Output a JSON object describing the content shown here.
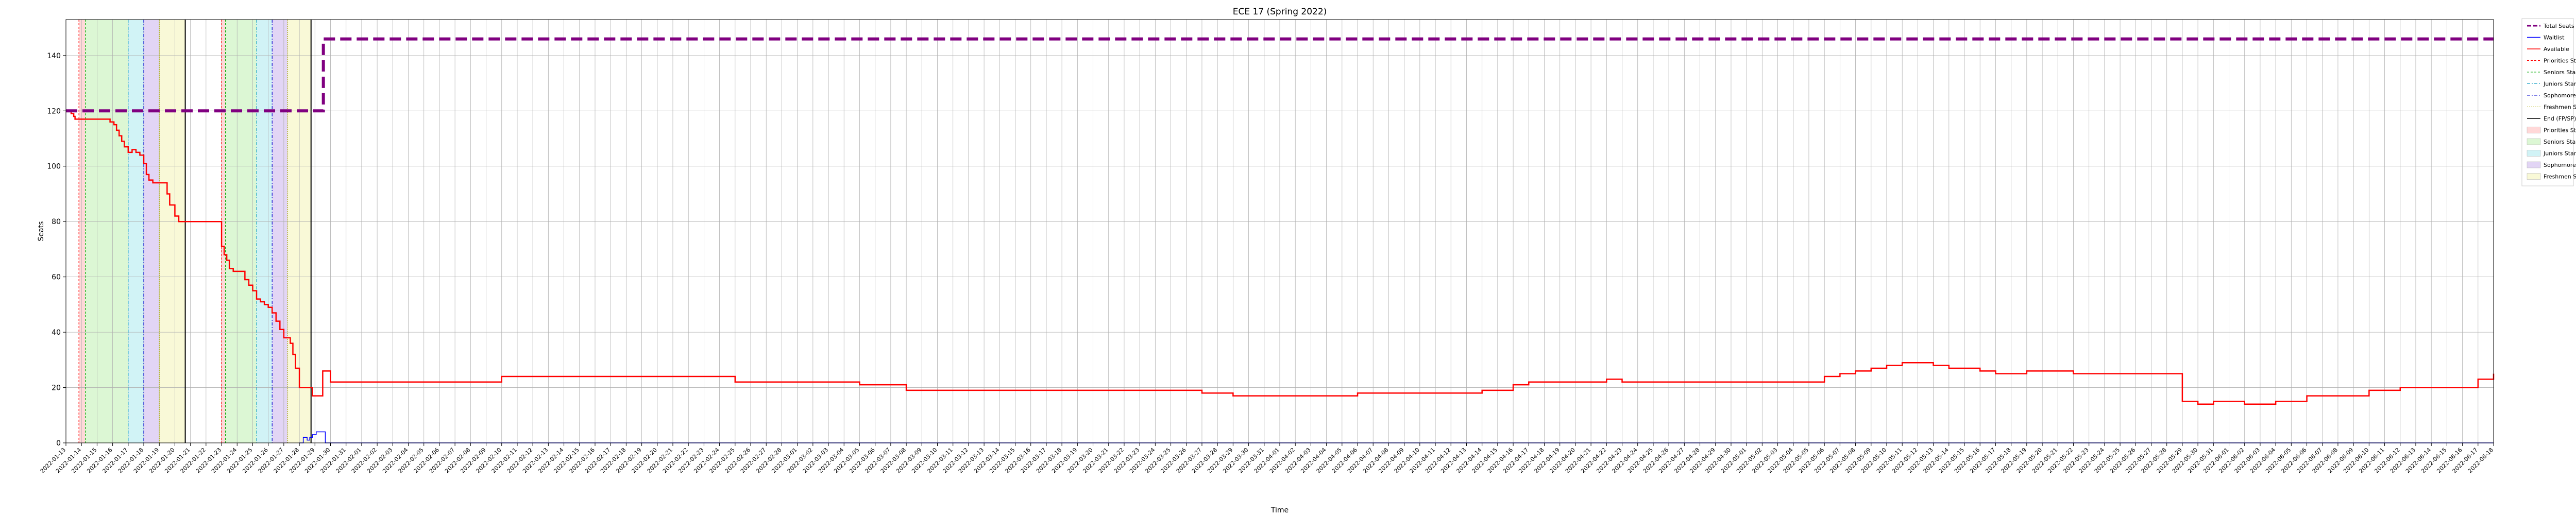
{
  "chart_data": {
    "type": "line",
    "title": "ECE 17 (Spring 2022)",
    "xlabel": "Time",
    "ylabel": "Seats",
    "ylim": [
      0,
      153
    ],
    "y_ticks": [
      0,
      20,
      40,
      60,
      80,
      100,
      120,
      140
    ],
    "grid": true,
    "legend_placement": "outside-right",
    "x_range": [
      "2022-01-13",
      "2022-06-18"
    ],
    "x_tick_interval_days": 1,
    "colors": {
      "total": "#800080",
      "waitlist": "#0000ff",
      "available": "#ff0000",
      "priorities": "#ff0000",
      "seniors": "#00aa00",
      "juniors": "#1ba3c6",
      "sophomores": "#0000cc",
      "freshmen": "#aaaa00",
      "end": "#000000",
      "priorities_fill": "#ffd8d8",
      "seniors_fill": "#dcf7d4",
      "juniors_fill": "#d1f3f6",
      "sophomores_fill": "#e2d5f5",
      "freshmen_fill": "#f9f9d7"
    },
    "legend": [
      {
        "label": "Total Seats",
        "kind": "line",
        "color": "#800080",
        "dash": "8,4",
        "width": 3
      },
      {
        "label": "Waitlist",
        "kind": "line",
        "color": "#0000ff",
        "dash": "",
        "width": 1.5
      },
      {
        "label": "Available",
        "kind": "line",
        "color": "#ff0000",
        "dash": "",
        "width": 1.5
      },
      {
        "label": "Priorities Start",
        "kind": "line",
        "color": "#ff0000",
        "dash": "4,3",
        "width": 1
      },
      {
        "label": "Seniors Start",
        "kind": "line",
        "color": "#00aa00",
        "dash": "4,3",
        "width": 1
      },
      {
        "label": "Juniors Start",
        "kind": "line",
        "color": "#1ba3c6",
        "dash": "6,3,2,3",
        "width": 1
      },
      {
        "label": "Sophomores Start",
        "kind": "line",
        "color": "#0000cc",
        "dash": "6,3,2,3",
        "width": 1
      },
      {
        "label": "Freshmen Start",
        "kind": "line",
        "color": "#aaaa00",
        "dash": "2,2",
        "width": 1
      },
      {
        "label": "End (FP/SP)",
        "kind": "line",
        "color": "#000000",
        "dash": "",
        "width": 1.5
      },
      {
        "label": "Priorities Start",
        "kind": "patch",
        "color": "#ffd8d8"
      },
      {
        "label": "Seniors Start",
        "kind": "patch",
        "color": "#dcf7d4"
      },
      {
        "label": "Juniors Start",
        "kind": "patch",
        "color": "#d1f3f6"
      },
      {
        "label": "Sophomores Start",
        "kind": "patch",
        "color": "#e2d5f5"
      },
      {
        "label": "Freshmen Start",
        "kind": "patch",
        "color": "#f9f9d7"
      }
    ],
    "enrollment_passes": [
      {
        "priorities": "2022-01-13 20:00",
        "seniors": "2022-01-14 06:00",
        "juniors": "2022-01-17 00:00",
        "sophomores": "2022-01-18 00:00",
        "freshmen": "2022-01-19 00:00",
        "end": "2022-01-20 16:00"
      },
      {
        "priorities": "2022-01-23 00:00",
        "seniors": "2022-01-23 06:00",
        "juniors": "2022-01-25 06:00",
        "sophomores": "2022-01-26 06:00",
        "freshmen": "2022-01-27 06:00",
        "end": "2022-01-28 18:00"
      }
    ],
    "series": [
      {
        "name": "Total Seats",
        "x": [
          "2022-01-13 00:00",
          "2022-01-29 12:00",
          "2022-01-29 13:00",
          "2022-06-18 00:00"
        ],
        "y": [
          120,
          120,
          146,
          146
        ]
      },
      {
        "name": "Waitlist",
        "x": [
          "2022-01-28 00:00",
          "2022-01-28 06:00",
          "2022-01-28 12:00",
          "2022-01-28 16:00",
          "2022-01-28 20:00",
          "2022-01-29 02:00",
          "2022-01-29 08:00",
          "2022-01-29 16:00",
          "2022-01-29 16:01",
          "2022-06-18 00:00"
        ],
        "y": [
          0,
          2,
          1,
          2,
          3,
          4,
          4,
          4,
          0,
          0
        ]
      },
      {
        "name": "Available",
        "x": [
          "2022-01-13 00:00",
          "2022-01-13 08:00",
          "2022-01-13 12:00",
          "2022-01-13 14:00",
          "2022-01-14 00:00",
          "2022-01-15 12:00",
          "2022-01-15 20:00",
          "2022-01-16 02:00",
          "2022-01-16 06:00",
          "2022-01-16 10:00",
          "2022-01-16 14:00",
          "2022-01-16 18:00",
          "2022-01-17 00:00",
          "2022-01-17 06:00",
          "2022-01-17 12:00",
          "2022-01-17 18:00",
          "2022-01-18 00:00",
          "2022-01-18 04:00",
          "2022-01-18 08:00",
          "2022-01-18 14:00",
          "2022-01-19 00:00",
          "2022-01-19 12:00",
          "2022-01-19 16:00",
          "2022-01-20 00:00",
          "2022-01-20 06:00",
          "2022-01-23 00:00",
          "2022-01-23 04:00",
          "2022-01-23 08:00",
          "2022-01-23 12:00",
          "2022-01-23 18:00",
          "2022-01-24 06:00",
          "2022-01-24 12:00",
          "2022-01-24 18:00",
          "2022-01-25 00:00",
          "2022-01-25 06:00",
          "2022-01-25 12:00",
          "2022-01-25 18:00",
          "2022-01-26 00:00",
          "2022-01-26 06:00",
          "2022-01-26 12:00",
          "2022-01-26 18:00",
          "2022-01-27 00:00",
          "2022-01-27 06:00",
          "2022-01-27 10:00",
          "2022-01-27 14:00",
          "2022-01-27 18:00",
          "2022-01-28 00:00",
          "2022-01-28 12:00",
          "2022-01-28 20:00",
          "2022-01-29 12:00",
          "2022-01-29 13:00",
          "2022-01-30 00:00",
          "2022-01-31 00:00",
          "2022-02-01 00:00",
          "2022-02-10 00:00",
          "2022-02-12 00:00",
          "2022-02-22 00:00",
          "2022-02-25 00:00",
          "2022-03-01 00:00",
          "2022-03-05 00:00",
          "2022-03-08 00:00",
          "2022-03-23 00:00",
          "2022-03-27 00:00",
          "2022-03-29 00:00",
          "2022-04-04 00:00",
          "2022-04-06 00:00",
          "2022-04-13 00:00",
          "2022-04-14 00:00",
          "2022-04-16 00:00",
          "2022-04-17 00:00",
          "2022-04-22 00:00",
          "2022-04-23 00:00",
          "2022-04-26 00:00",
          "2022-05-02 00:00",
          "2022-05-06 00:00",
          "2022-05-07 00:00",
          "2022-05-08 00:00",
          "2022-05-09 00:00",
          "2022-05-10 00:00",
          "2022-05-11 00:00",
          "2022-05-13 00:00",
          "2022-05-14 00:00",
          "2022-05-16 00:00",
          "2022-05-17 00:00",
          "2022-05-19 00:00",
          "2022-05-22 00:00",
          "2022-05-29 00:00",
          "2022-05-30 00:00",
          "2022-05-31 00:00",
          "2022-06-02 00:00",
          "2022-06-04 00:00",
          "2022-06-06 00:00",
          "2022-06-10 00:00",
          "2022-06-12 00:00",
          "2022-06-13 00:00",
          "2022-06-17 00:00",
          "2022-06-18 00:00"
        ],
        "y": [
          120,
          119,
          118,
          117,
          117,
          117,
          116,
          115,
          113,
          111,
          109,
          107,
          105,
          106,
          105,
          104,
          101,
          97,
          95,
          94,
          94,
          90,
          86,
          82,
          80,
          71,
          68,
          66,
          63,
          62,
          62,
          59,
          57,
          55,
          52,
          51,
          50,
          49,
          47,
          44,
          41,
          38,
          38,
          36,
          32,
          27,
          20,
          20,
          17,
          26,
          26,
          22,
          22,
          22,
          24,
          24,
          24,
          22,
          22,
          21,
          19,
          19,
          18,
          17,
          17,
          18,
          18,
          19,
          21,
          22,
          23,
          22,
          22,
          22,
          24,
          25,
          26,
          27,
          28,
          29,
          28,
          27,
          26,
          25,
          26,
          25,
          15,
          14,
          15,
          14,
          15,
          17,
          19,
          20,
          20,
          23,
          25
        ]
      }
    ]
  }
}
